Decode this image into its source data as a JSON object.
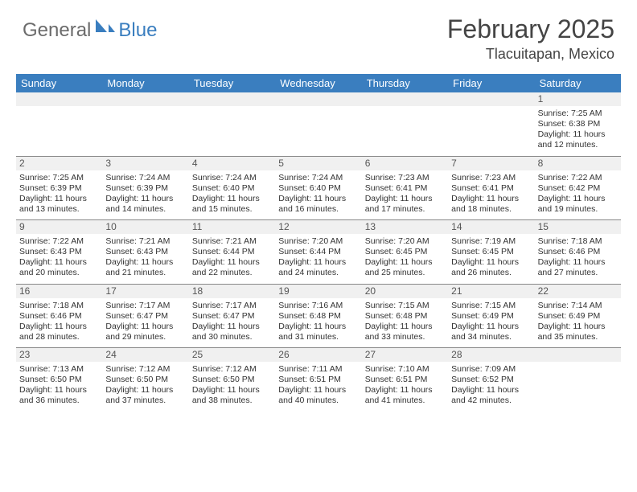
{
  "logo": {
    "text1": "General",
    "text2": "Blue"
  },
  "title": "February 2025",
  "location": "Tlacuitapan, Mexico",
  "colors": {
    "header_bg": "#3a7ebf",
    "header_text": "#ffffff",
    "grid_line": "#888888",
    "daynum_bg": "#f0f0f0",
    "text": "#333333",
    "logo_gray": "#6b6b6b",
    "logo_blue": "#3a7ebf",
    "background": "#ffffff"
  },
  "day_names": [
    "Sunday",
    "Monday",
    "Tuesday",
    "Wednesday",
    "Thursday",
    "Friday",
    "Saturday"
  ],
  "weeks": [
    [
      {
        "day": "",
        "sunrise": "",
        "sunset": "",
        "daylight": ""
      },
      {
        "day": "",
        "sunrise": "",
        "sunset": "",
        "daylight": ""
      },
      {
        "day": "",
        "sunrise": "",
        "sunset": "",
        "daylight": ""
      },
      {
        "day": "",
        "sunrise": "",
        "sunset": "",
        "daylight": ""
      },
      {
        "day": "",
        "sunrise": "",
        "sunset": "",
        "daylight": ""
      },
      {
        "day": "",
        "sunrise": "",
        "sunset": "",
        "daylight": ""
      },
      {
        "day": "1",
        "sunrise": "Sunrise: 7:25 AM",
        "sunset": "Sunset: 6:38 PM",
        "daylight": "Daylight: 11 hours and 12 minutes."
      }
    ],
    [
      {
        "day": "2",
        "sunrise": "Sunrise: 7:25 AM",
        "sunset": "Sunset: 6:39 PM",
        "daylight": "Daylight: 11 hours and 13 minutes."
      },
      {
        "day": "3",
        "sunrise": "Sunrise: 7:24 AM",
        "sunset": "Sunset: 6:39 PM",
        "daylight": "Daylight: 11 hours and 14 minutes."
      },
      {
        "day": "4",
        "sunrise": "Sunrise: 7:24 AM",
        "sunset": "Sunset: 6:40 PM",
        "daylight": "Daylight: 11 hours and 15 minutes."
      },
      {
        "day": "5",
        "sunrise": "Sunrise: 7:24 AM",
        "sunset": "Sunset: 6:40 PM",
        "daylight": "Daylight: 11 hours and 16 minutes."
      },
      {
        "day": "6",
        "sunrise": "Sunrise: 7:23 AM",
        "sunset": "Sunset: 6:41 PM",
        "daylight": "Daylight: 11 hours and 17 minutes."
      },
      {
        "day": "7",
        "sunrise": "Sunrise: 7:23 AM",
        "sunset": "Sunset: 6:41 PM",
        "daylight": "Daylight: 11 hours and 18 minutes."
      },
      {
        "day": "8",
        "sunrise": "Sunrise: 7:22 AM",
        "sunset": "Sunset: 6:42 PM",
        "daylight": "Daylight: 11 hours and 19 minutes."
      }
    ],
    [
      {
        "day": "9",
        "sunrise": "Sunrise: 7:22 AM",
        "sunset": "Sunset: 6:43 PM",
        "daylight": "Daylight: 11 hours and 20 minutes."
      },
      {
        "day": "10",
        "sunrise": "Sunrise: 7:21 AM",
        "sunset": "Sunset: 6:43 PM",
        "daylight": "Daylight: 11 hours and 21 minutes."
      },
      {
        "day": "11",
        "sunrise": "Sunrise: 7:21 AM",
        "sunset": "Sunset: 6:44 PM",
        "daylight": "Daylight: 11 hours and 22 minutes."
      },
      {
        "day": "12",
        "sunrise": "Sunrise: 7:20 AM",
        "sunset": "Sunset: 6:44 PM",
        "daylight": "Daylight: 11 hours and 24 minutes."
      },
      {
        "day": "13",
        "sunrise": "Sunrise: 7:20 AM",
        "sunset": "Sunset: 6:45 PM",
        "daylight": "Daylight: 11 hours and 25 minutes."
      },
      {
        "day": "14",
        "sunrise": "Sunrise: 7:19 AM",
        "sunset": "Sunset: 6:45 PM",
        "daylight": "Daylight: 11 hours and 26 minutes."
      },
      {
        "day": "15",
        "sunrise": "Sunrise: 7:18 AM",
        "sunset": "Sunset: 6:46 PM",
        "daylight": "Daylight: 11 hours and 27 minutes."
      }
    ],
    [
      {
        "day": "16",
        "sunrise": "Sunrise: 7:18 AM",
        "sunset": "Sunset: 6:46 PM",
        "daylight": "Daylight: 11 hours and 28 minutes."
      },
      {
        "day": "17",
        "sunrise": "Sunrise: 7:17 AM",
        "sunset": "Sunset: 6:47 PM",
        "daylight": "Daylight: 11 hours and 29 minutes."
      },
      {
        "day": "18",
        "sunrise": "Sunrise: 7:17 AM",
        "sunset": "Sunset: 6:47 PM",
        "daylight": "Daylight: 11 hours and 30 minutes."
      },
      {
        "day": "19",
        "sunrise": "Sunrise: 7:16 AM",
        "sunset": "Sunset: 6:48 PM",
        "daylight": "Daylight: 11 hours and 31 minutes."
      },
      {
        "day": "20",
        "sunrise": "Sunrise: 7:15 AM",
        "sunset": "Sunset: 6:48 PM",
        "daylight": "Daylight: 11 hours and 33 minutes."
      },
      {
        "day": "21",
        "sunrise": "Sunrise: 7:15 AM",
        "sunset": "Sunset: 6:49 PM",
        "daylight": "Daylight: 11 hours and 34 minutes."
      },
      {
        "day": "22",
        "sunrise": "Sunrise: 7:14 AM",
        "sunset": "Sunset: 6:49 PM",
        "daylight": "Daylight: 11 hours and 35 minutes."
      }
    ],
    [
      {
        "day": "23",
        "sunrise": "Sunrise: 7:13 AM",
        "sunset": "Sunset: 6:50 PM",
        "daylight": "Daylight: 11 hours and 36 minutes."
      },
      {
        "day": "24",
        "sunrise": "Sunrise: 7:12 AM",
        "sunset": "Sunset: 6:50 PM",
        "daylight": "Daylight: 11 hours and 37 minutes."
      },
      {
        "day": "25",
        "sunrise": "Sunrise: 7:12 AM",
        "sunset": "Sunset: 6:50 PM",
        "daylight": "Daylight: 11 hours and 38 minutes."
      },
      {
        "day": "26",
        "sunrise": "Sunrise: 7:11 AM",
        "sunset": "Sunset: 6:51 PM",
        "daylight": "Daylight: 11 hours and 40 minutes."
      },
      {
        "day": "27",
        "sunrise": "Sunrise: 7:10 AM",
        "sunset": "Sunset: 6:51 PM",
        "daylight": "Daylight: 11 hours and 41 minutes."
      },
      {
        "day": "28",
        "sunrise": "Sunrise: 7:09 AM",
        "sunset": "Sunset: 6:52 PM",
        "daylight": "Daylight: 11 hours and 42 minutes."
      },
      {
        "day": "",
        "sunrise": "",
        "sunset": "",
        "daylight": ""
      }
    ]
  ]
}
